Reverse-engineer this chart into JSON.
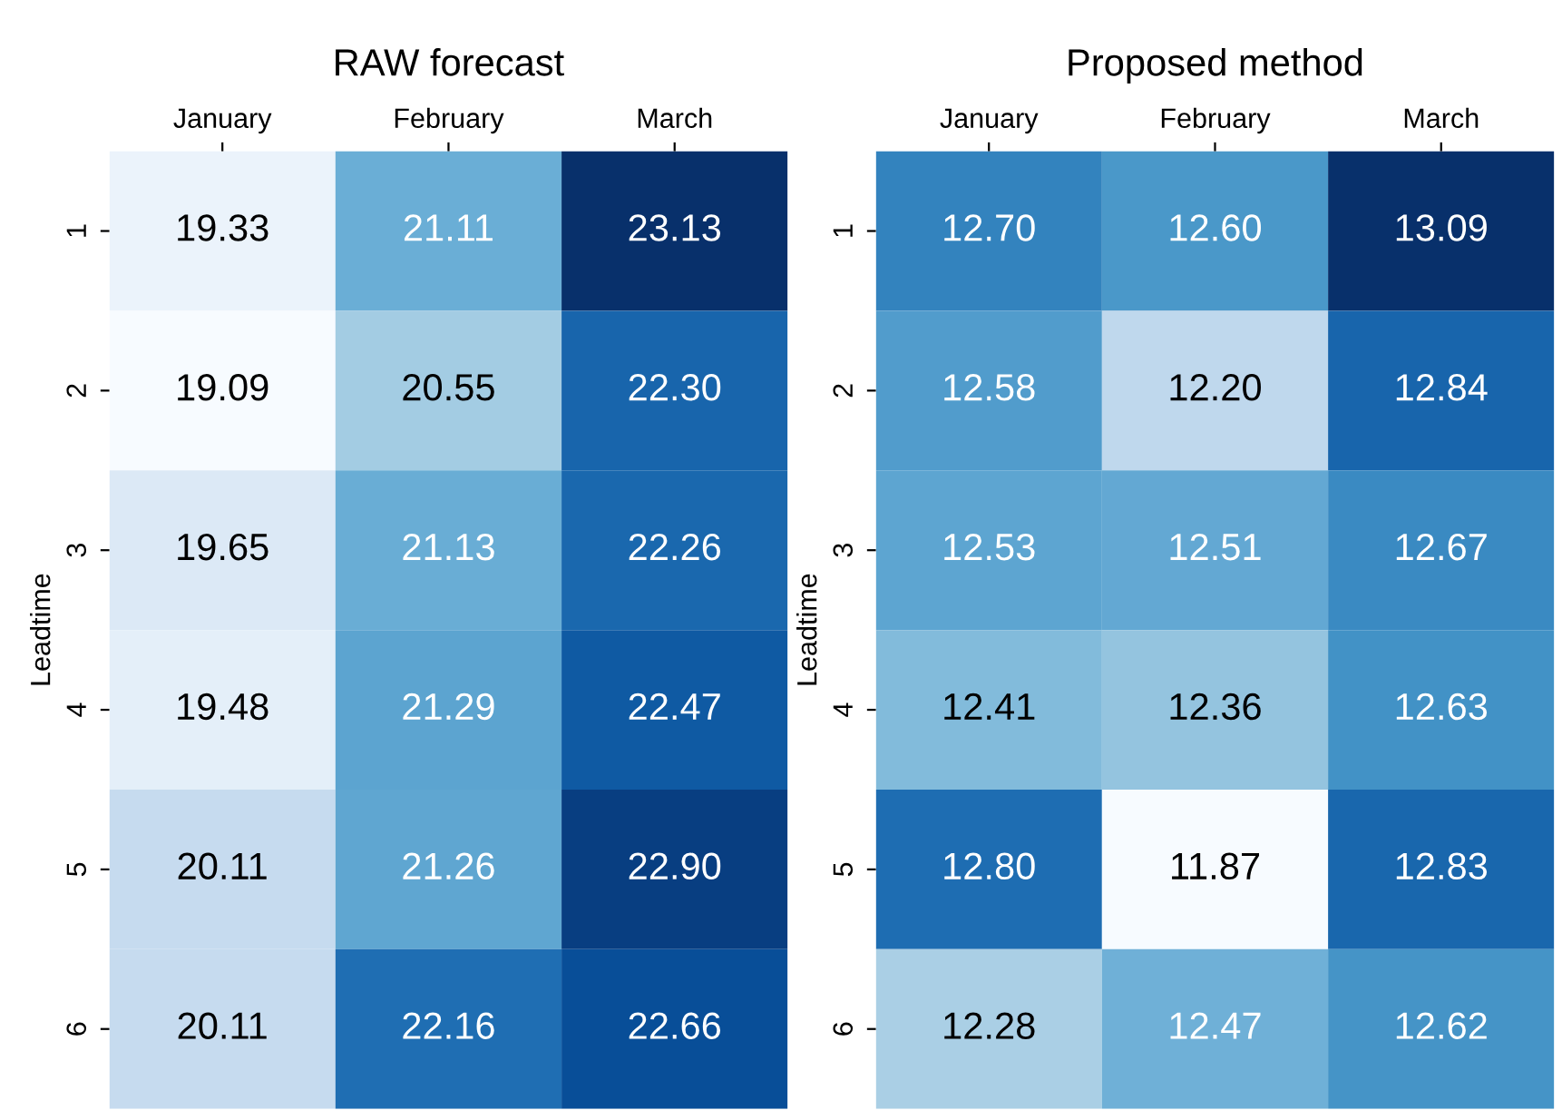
{
  "chart_data": [
    {
      "type": "heatmap",
      "title": "RAW forecast",
      "ylabel": "Leadtime",
      "categories": [
        "January",
        "February",
        "March"
      ],
      "y_categories": [
        "1",
        "2",
        "3",
        "4",
        "5",
        "6"
      ],
      "cells": [
        [
          19.33,
          21.11,
          23.13
        ],
        [
          19.09,
          20.55,
          22.3
        ],
        [
          19.65,
          21.13,
          22.26
        ],
        [
          19.48,
          21.29,
          22.47
        ],
        [
          20.11,
          21.26,
          22.9
        ],
        [
          20.11,
          22.16,
          22.66
        ]
      ],
      "cell_labels": [
        [
          "19.33",
          "21.11",
          "23.13"
        ],
        [
          "19.09",
          "20.55",
          "22.30"
        ],
        [
          "19.65",
          "21.13",
          "22.26"
        ],
        [
          "19.48",
          "21.29",
          "22.47"
        ],
        [
          "20.11",
          "21.26",
          "22.90"
        ],
        [
          "20.11",
          "22.16",
          "22.66"
        ]
      ]
    },
    {
      "type": "heatmap",
      "title": "Proposed method",
      "ylabel": "Leadtime",
      "categories": [
        "January",
        "February",
        "March"
      ],
      "y_categories": [
        "1",
        "2",
        "3",
        "4",
        "5",
        "6"
      ],
      "cells": [
        [
          12.7,
          12.6,
          13.09
        ],
        [
          12.58,
          12.2,
          12.84
        ],
        [
          12.53,
          12.51,
          12.67
        ],
        [
          12.41,
          12.36,
          12.63
        ],
        [
          12.8,
          11.87,
          12.83
        ],
        [
          12.28,
          12.47,
          12.62
        ]
      ],
      "cell_labels": [
        [
          "12.70",
          "12.60",
          "13.09"
        ],
        [
          "12.58",
          "12.20",
          "12.84"
        ],
        [
          "12.53",
          "12.51",
          "12.67"
        ],
        [
          "12.41",
          "12.36",
          "12.63"
        ],
        [
          "12.80",
          "11.87",
          "12.83"
        ],
        [
          "12.28",
          "12.47",
          "12.62"
        ]
      ]
    }
  ]
}
